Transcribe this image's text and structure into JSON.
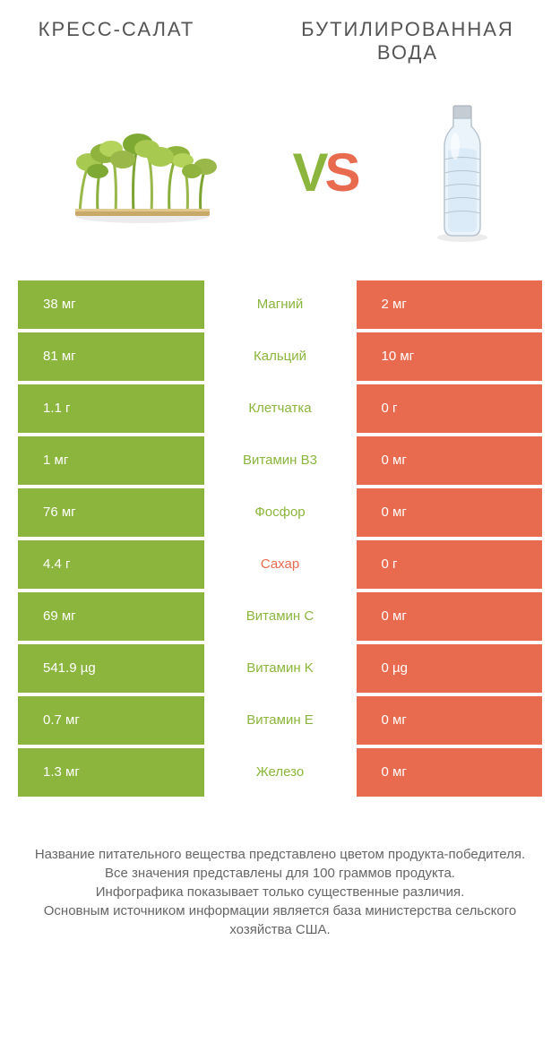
{
  "colors": {
    "green": "#8bb53c",
    "orange": "#e96b4f",
    "text": "#555555",
    "white": "#ffffff"
  },
  "header": {
    "left_title": "КРЕСС-САЛАТ",
    "right_title": "БУТИЛИРОВАННАЯ ВОДА",
    "vs_v": "V",
    "vs_s": "S"
  },
  "rows": [
    {
      "left": "38 мг",
      "label": "Магний",
      "right": "2 мг",
      "label_color": "#8bb53c"
    },
    {
      "left": "81 мг",
      "label": "Кальций",
      "right": "10 мг",
      "label_color": "#8bb53c"
    },
    {
      "left": "1.1 г",
      "label": "Клетчатка",
      "right": "0 г",
      "label_color": "#8bb53c"
    },
    {
      "left": "1 мг",
      "label": "Витамин B3",
      "right": "0 мг",
      "label_color": "#8bb53c"
    },
    {
      "left": "76 мг",
      "label": "Фосфор",
      "right": "0 мг",
      "label_color": "#8bb53c"
    },
    {
      "left": "4.4 г",
      "label": "Сахар",
      "right": "0 г",
      "label_color": "#e96b4f"
    },
    {
      "left": "69 мг",
      "label": "Витамин C",
      "right": "0 мг",
      "label_color": "#8bb53c"
    },
    {
      "left": "541.9 µg",
      "label": "Витамин K",
      "right": "0 µg",
      "label_color": "#8bb53c"
    },
    {
      "left": "0.7 мг",
      "label": "Витамин E",
      "right": "0 мг",
      "label_color": "#8bb53c"
    },
    {
      "left": "1.3 мг",
      "label": "Железо",
      "right": "0 мг",
      "label_color": "#8bb53c"
    }
  ],
  "footer": {
    "line1": "Название питательного вещества представлено цветом продукта-победителя.",
    "line2": "Все значения представлены для 100 граммов продукта.",
    "line3": "Инфографика показывает только существенные различия.",
    "line4": "Основным источником информации является база министерства сельского хозяйства США."
  }
}
